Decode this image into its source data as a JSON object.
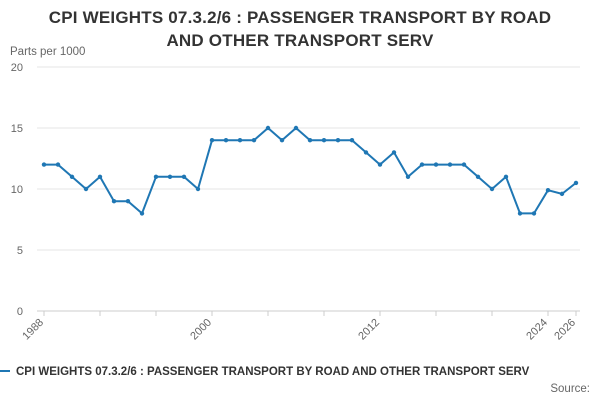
{
  "chart_data": {
    "type": "line",
    "title": "CPI WEIGHTS 07.3.2/6 : PASSENGER TRANSPORT BY ROAD AND OTHER TRANSPORT SERV",
    "title_lines": [
      "CPI WEIGHTS 07.3.2/6 : PASSENGER TRANSPORT BY ROAD",
      "AND OTHER TRANSPORT SERV"
    ],
    "ylabel": "Parts per 1000",
    "xlabel": "",
    "ylim": [
      0,
      20
    ],
    "xlim": [
      1988,
      2026
    ],
    "yticks": [
      0,
      5,
      10,
      15,
      20
    ],
    "xticks": [
      1988,
      2000,
      2012,
      2024,
      2026
    ],
    "grid": true,
    "legend_position": "bottom-left",
    "series": [
      {
        "name": "CPI WEIGHTS 07.3.2/6 : PASSENGER TRANSPORT BY ROAD AND OTHER TRANSPORT SERV",
        "color": "#1f77b4",
        "x": [
          1988,
          1989,
          1990,
          1991,
          1992,
          1993,
          1994,
          1995,
          1996,
          1997,
          1998,
          1999,
          2000,
          2001,
          2002,
          2003,
          2004,
          2005,
          2006,
          2007,
          2008,
          2009,
          2010,
          2011,
          2012,
          2013,
          2014,
          2015,
          2016,
          2017,
          2018,
          2019,
          2020,
          2021,
          2022,
          2023,
          2024,
          2025,
          2026
        ],
        "values": [
          12,
          12,
          11,
          10,
          11,
          9,
          9,
          8,
          11,
          11,
          11,
          10,
          14,
          14,
          14,
          14,
          15,
          14,
          15,
          14,
          14,
          14,
          14,
          13,
          12,
          13,
          11,
          12,
          12,
          12,
          12,
          11,
          10,
          11,
          8,
          8,
          9.9,
          9.6,
          10.5
        ]
      }
    ]
  },
  "legend": {
    "label": "CPI WEIGHTS 07.3.2/6 : PASSENGER TRANSPORT BY ROAD AND OTHER TRANSPORT SERV"
  },
  "source": {
    "label": "Source:"
  }
}
